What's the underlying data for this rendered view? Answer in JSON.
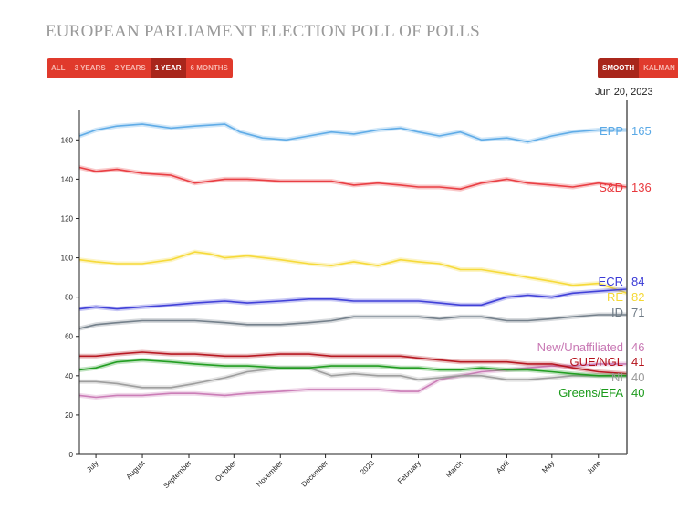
{
  "title": "EUROPEAN PARLIAMENT ELECTION POLL OF POLLS",
  "range_buttons": [
    "ALL",
    "3 YEARS",
    "2 YEARS",
    "1 YEAR",
    "6 MONTHS"
  ],
  "range_active": "1 YEAR",
  "mode_buttons": [
    "SMOOTH",
    "KALMAN"
  ],
  "mode_active": "SMOOTH",
  "current_date": "Jun 20, 2023",
  "chart_data": {
    "type": "line",
    "title": "",
    "xlabel": "",
    "ylabel": "",
    "ylim": [
      0,
      175
    ],
    "y_ticks": [
      0,
      20,
      40,
      60,
      80,
      100,
      120,
      140,
      160
    ],
    "x_tick_labels": [
      "July",
      "August",
      "September",
      "October",
      "November",
      "December",
      "2023",
      "February",
      "March",
      "April",
      "May",
      "June"
    ],
    "x_tick_dates": [
      "2022-07-01",
      "2022-08-01",
      "2022-09-01",
      "2022-10-01",
      "2022-11-01",
      "2022-12-01",
      "2023-01-01",
      "2023-02-01",
      "2023-03-01",
      "2023-04-01",
      "2023-05-01",
      "2023-06-01"
    ],
    "x_range": [
      "2022-06-20",
      "2023-06-20"
    ],
    "grid": false,
    "series": [
      {
        "name": "EPP",
        "color": "#5aa9e6",
        "end_value": 165,
        "label_text": "EPP",
        "points": [
          [
            "2022-06-20",
            162
          ],
          [
            "2022-07-01",
            165
          ],
          [
            "2022-07-15",
            167
          ],
          [
            "2022-08-01",
            168
          ],
          [
            "2022-08-20",
            166
          ],
          [
            "2022-09-05",
            167
          ],
          [
            "2022-09-25",
            168
          ],
          [
            "2022-10-05",
            164
          ],
          [
            "2022-10-20",
            161
          ],
          [
            "2022-11-05",
            160
          ],
          [
            "2022-11-20",
            162
          ],
          [
            "2022-12-05",
            164
          ],
          [
            "2022-12-20",
            163
          ],
          [
            "2023-01-05",
            165
          ],
          [
            "2023-01-20",
            166
          ],
          [
            "2023-02-01",
            164
          ],
          [
            "2023-02-15",
            162
          ],
          [
            "2023-03-01",
            164
          ],
          [
            "2023-03-15",
            160
          ],
          [
            "2023-04-01",
            161
          ],
          [
            "2023-04-15",
            159
          ],
          [
            "2023-05-01",
            162
          ],
          [
            "2023-05-15",
            164
          ],
          [
            "2023-06-01",
            165
          ],
          [
            "2023-06-20",
            165
          ]
        ]
      },
      {
        "name": "S&D",
        "color": "#e8383d",
        "end_value": 136,
        "label_text": "S&D",
        "points": [
          [
            "2022-06-20",
            146
          ],
          [
            "2022-07-01",
            144
          ],
          [
            "2022-07-15",
            145
          ],
          [
            "2022-08-01",
            143
          ],
          [
            "2022-08-20",
            142
          ],
          [
            "2022-09-05",
            138
          ],
          [
            "2022-09-25",
            140
          ],
          [
            "2022-10-10",
            140
          ],
          [
            "2022-11-01",
            139
          ],
          [
            "2022-11-20",
            139
          ],
          [
            "2022-12-05",
            139
          ],
          [
            "2022-12-20",
            137
          ],
          [
            "2023-01-05",
            138
          ],
          [
            "2023-01-20",
            137
          ],
          [
            "2023-02-01",
            136
          ],
          [
            "2023-02-15",
            136
          ],
          [
            "2023-03-01",
            135
          ],
          [
            "2023-03-15",
            138
          ],
          [
            "2023-04-01",
            140
          ],
          [
            "2023-04-15",
            138
          ],
          [
            "2023-05-01",
            137
          ],
          [
            "2023-05-15",
            136
          ],
          [
            "2023-06-01",
            138
          ],
          [
            "2023-06-20",
            136
          ]
        ]
      },
      {
        "name": "RE",
        "color": "#f5d833",
        "end_value": 82,
        "label_text": "RE",
        "points": [
          [
            "2022-06-20",
            99
          ],
          [
            "2022-07-01",
            98
          ],
          [
            "2022-07-15",
            97
          ],
          [
            "2022-08-01",
            97
          ],
          [
            "2022-08-20",
            99
          ],
          [
            "2022-09-05",
            103
          ],
          [
            "2022-09-15",
            102
          ],
          [
            "2022-09-25",
            100
          ],
          [
            "2022-10-10",
            101
          ],
          [
            "2022-11-01",
            99
          ],
          [
            "2022-11-20",
            97
          ],
          [
            "2022-12-05",
            96
          ],
          [
            "2022-12-20",
            98
          ],
          [
            "2023-01-05",
            96
          ],
          [
            "2023-01-20",
            99
          ],
          [
            "2023-02-01",
            98
          ],
          [
            "2023-02-15",
            97
          ],
          [
            "2023-03-01",
            94
          ],
          [
            "2023-03-15",
            94
          ],
          [
            "2023-04-01",
            92
          ],
          [
            "2023-04-15",
            90
          ],
          [
            "2023-05-01",
            88
          ],
          [
            "2023-05-15",
            86
          ],
          [
            "2023-06-01",
            87
          ],
          [
            "2023-06-20",
            82
          ]
        ]
      },
      {
        "name": "ECR",
        "color": "#3a3ad6",
        "end_value": 84,
        "label_text": "ECR",
        "points": [
          [
            "2022-06-20",
            74
          ],
          [
            "2022-07-01",
            75
          ],
          [
            "2022-07-15",
            74
          ],
          [
            "2022-08-01",
            75
          ],
          [
            "2022-08-20",
            76
          ],
          [
            "2022-09-05",
            77
          ],
          [
            "2022-09-25",
            78
          ],
          [
            "2022-10-10",
            77
          ],
          [
            "2022-11-01",
            78
          ],
          [
            "2022-11-20",
            79
          ],
          [
            "2022-12-05",
            79
          ],
          [
            "2022-12-20",
            78
          ],
          [
            "2023-01-05",
            78
          ],
          [
            "2023-01-20",
            78
          ],
          [
            "2023-02-01",
            78
          ],
          [
            "2023-02-15",
            77
          ],
          [
            "2023-03-01",
            76
          ],
          [
            "2023-03-15",
            76
          ],
          [
            "2023-04-01",
            80
          ],
          [
            "2023-04-15",
            81
          ],
          [
            "2023-05-01",
            80
          ],
          [
            "2023-05-15",
            82
          ],
          [
            "2023-06-01",
            83
          ],
          [
            "2023-06-20",
            84
          ]
        ]
      },
      {
        "name": "ID",
        "color": "#6f7b86",
        "end_value": 71,
        "label_text": "ID",
        "points": [
          [
            "2022-06-20",
            64
          ],
          [
            "2022-07-01",
            66
          ],
          [
            "2022-07-15",
            67
          ],
          [
            "2022-08-01",
            68
          ],
          [
            "2022-08-20",
            68
          ],
          [
            "2022-09-05",
            68
          ],
          [
            "2022-09-25",
            67
          ],
          [
            "2022-10-10",
            66
          ],
          [
            "2022-11-01",
            66
          ],
          [
            "2022-11-20",
            67
          ],
          [
            "2022-12-05",
            68
          ],
          [
            "2022-12-20",
            70
          ],
          [
            "2023-01-05",
            70
          ],
          [
            "2023-01-20",
            70
          ],
          [
            "2023-02-01",
            70
          ],
          [
            "2023-02-15",
            69
          ],
          [
            "2023-03-01",
            70
          ],
          [
            "2023-03-15",
            70
          ],
          [
            "2023-04-01",
            68
          ],
          [
            "2023-04-15",
            68
          ],
          [
            "2023-05-01",
            69
          ],
          [
            "2023-05-15",
            70
          ],
          [
            "2023-06-01",
            71
          ],
          [
            "2023-06-20",
            71
          ]
        ]
      },
      {
        "name": "New/Unaffiliated",
        "color": "#c878b4",
        "end_value": 46,
        "label_text": "New/Unaffiliated",
        "points": [
          [
            "2022-06-20",
            30
          ],
          [
            "2022-07-01",
            29
          ],
          [
            "2022-07-15",
            30
          ],
          [
            "2022-08-01",
            30
          ],
          [
            "2022-08-20",
            31
          ],
          [
            "2022-09-05",
            31
          ],
          [
            "2022-09-25",
            30
          ],
          [
            "2022-10-10",
            31
          ],
          [
            "2022-11-01",
            32
          ],
          [
            "2022-11-20",
            33
          ],
          [
            "2022-12-05",
            33
          ],
          [
            "2022-12-20",
            33
          ],
          [
            "2023-01-05",
            33
          ],
          [
            "2023-01-20",
            32
          ],
          [
            "2023-02-01",
            32
          ],
          [
            "2023-02-15",
            38
          ],
          [
            "2023-03-01",
            40
          ],
          [
            "2023-03-15",
            42
          ],
          [
            "2023-04-01",
            43
          ],
          [
            "2023-04-15",
            44
          ],
          [
            "2023-05-01",
            45
          ],
          [
            "2023-05-15",
            45
          ],
          [
            "2023-06-01",
            46
          ],
          [
            "2023-06-20",
            46
          ]
        ]
      },
      {
        "name": "GUE/NGL",
        "color": "#b4111a",
        "end_value": 41,
        "label_text": "GUE/NGL",
        "points": [
          [
            "2022-06-20",
            50
          ],
          [
            "2022-07-01",
            50
          ],
          [
            "2022-07-15",
            51
          ],
          [
            "2022-08-01",
            52
          ],
          [
            "2022-08-20",
            51
          ],
          [
            "2022-09-05",
            51
          ],
          [
            "2022-09-25",
            50
          ],
          [
            "2022-10-10",
            50
          ],
          [
            "2022-11-01",
            51
          ],
          [
            "2022-11-20",
            51
          ],
          [
            "2022-12-05",
            50
          ],
          [
            "2022-12-20",
            50
          ],
          [
            "2023-01-05",
            50
          ],
          [
            "2023-01-20",
            50
          ],
          [
            "2023-02-01",
            49
          ],
          [
            "2023-02-15",
            48
          ],
          [
            "2023-03-01",
            47
          ],
          [
            "2023-03-15",
            47
          ],
          [
            "2023-04-01",
            47
          ],
          [
            "2023-04-15",
            46
          ],
          [
            "2023-05-01",
            46
          ],
          [
            "2023-05-15",
            44
          ],
          [
            "2023-06-01",
            42
          ],
          [
            "2023-06-20",
            41
          ]
        ]
      },
      {
        "name": "NI",
        "color": "#9a9a9a",
        "end_value": 40,
        "label_text": "NI",
        "points": [
          [
            "2022-06-20",
            37
          ],
          [
            "2022-07-01",
            37
          ],
          [
            "2022-07-15",
            36
          ],
          [
            "2022-08-01",
            34
          ],
          [
            "2022-08-20",
            34
          ],
          [
            "2022-09-05",
            36
          ],
          [
            "2022-09-25",
            39
          ],
          [
            "2022-10-10",
            42
          ],
          [
            "2022-11-01",
            44
          ],
          [
            "2022-11-20",
            44
          ],
          [
            "2022-12-05",
            40
          ],
          [
            "2022-12-20",
            41
          ],
          [
            "2023-01-05",
            40
          ],
          [
            "2023-01-20",
            40
          ],
          [
            "2023-02-01",
            38
          ],
          [
            "2023-02-15",
            39
          ],
          [
            "2023-03-01",
            40
          ],
          [
            "2023-03-15",
            40
          ],
          [
            "2023-04-01",
            38
          ],
          [
            "2023-04-15",
            38
          ],
          [
            "2023-05-01",
            39
          ],
          [
            "2023-05-15",
            40
          ],
          [
            "2023-06-01",
            40
          ],
          [
            "2023-06-20",
            40
          ]
        ]
      },
      {
        "name": "Greens/EFA",
        "color": "#1a9a1a",
        "end_value": 40,
        "label_text": "Greens/EFA",
        "points": [
          [
            "2022-06-20",
            43
          ],
          [
            "2022-07-01",
            44
          ],
          [
            "2022-07-15",
            47
          ],
          [
            "2022-08-01",
            48
          ],
          [
            "2022-08-20",
            47
          ],
          [
            "2022-09-05",
            46
          ],
          [
            "2022-09-25",
            45
          ],
          [
            "2022-10-10",
            45
          ],
          [
            "2022-11-01",
            44
          ],
          [
            "2022-11-20",
            44
          ],
          [
            "2022-12-05",
            45
          ],
          [
            "2022-12-20",
            45
          ],
          [
            "2023-01-05",
            45
          ],
          [
            "2023-01-20",
            44
          ],
          [
            "2023-02-01",
            44
          ],
          [
            "2023-02-15",
            43
          ],
          [
            "2023-03-01",
            43
          ],
          [
            "2023-03-15",
            44
          ],
          [
            "2023-04-01",
            43
          ],
          [
            "2023-04-15",
            43
          ],
          [
            "2023-05-01",
            42
          ],
          [
            "2023-05-15",
            41
          ],
          [
            "2023-06-01",
            40
          ],
          [
            "2023-06-20",
            40
          ]
        ]
      }
    ]
  }
}
